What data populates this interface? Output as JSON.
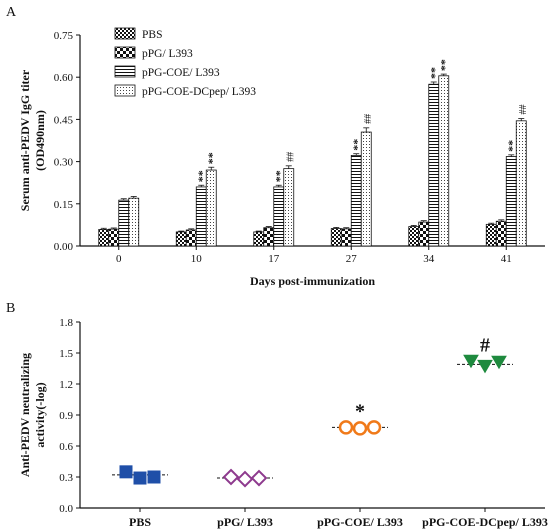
{
  "panels": {
    "a": "A",
    "b": "B"
  },
  "chart_data": [
    {
      "type": "bar",
      "title": "",
      "xlabel": "Days post-immunization",
      "ylabel": [
        "Serum anti-PEDV IgG titer",
        "(OD490nm)"
      ],
      "ylim": [
        0,
        0.75
      ],
      "yticks": [
        "0.00",
        "0.15",
        "0.30",
        "0.45",
        "0.60",
        "0.75"
      ],
      "categories": [
        "0",
        "10",
        "17",
        "27",
        "34",
        "41"
      ],
      "legend_position": "top-left",
      "series": [
        {
          "name": "PBS",
          "pattern": "checker",
          "values": [
            0.059,
            0.05,
            0.05,
            0.062,
            0.069,
            0.077
          ],
          "errors": [
            0.004,
            0.003,
            0.003,
            0.004,
            0.004,
            0.004
          ]
        },
        {
          "name": "pPG/ L393",
          "pattern": "bigchecker",
          "values": [
            0.06,
            0.057,
            0.065,
            0.061,
            0.085,
            0.088
          ],
          "errors": [
            0.004,
            0.004,
            0.004,
            0.004,
            0.005,
            0.005
          ]
        },
        {
          "name": "pPG-COE/ L393",
          "pattern": "hlines",
          "values": [
            0.163,
            0.21,
            0.21,
            0.322,
            0.575,
            0.318
          ],
          "errors": [
            0.005,
            0.006,
            0.006,
            0.006,
            0.008,
            0.006
          ]
        },
        {
          "name": "pPG-COE-DCpep/ L393",
          "pattern": "dots",
          "values": [
            0.17,
            0.27,
            0.275,
            0.405,
            0.605,
            0.445
          ],
          "errors": [
            0.006,
            0.01,
            0.01,
            0.015,
            0.006,
            0.008
          ]
        }
      ],
      "annotations": [
        {
          "category": "10",
          "series": "pPG-COE/ L393",
          "label": "**"
        },
        {
          "category": "10",
          "series": "pPG-COE-DCpep/ L393",
          "label": "**"
        },
        {
          "category": "17",
          "series": "pPG-COE/ L393",
          "label": "**"
        },
        {
          "category": "17",
          "series": "pPG-COE-DCpep/ L393",
          "label": "##"
        },
        {
          "category": "27",
          "series": "pPG-COE/ L393",
          "label": "**"
        },
        {
          "category": "27",
          "series": "pPG-COE-DCpep/ L393",
          "label": "##"
        },
        {
          "category": "34",
          "series": "pPG-COE/ L393",
          "label": "**"
        },
        {
          "category": "34",
          "series": "pPG-COE-DCpep/ L393",
          "label": "**"
        },
        {
          "category": "41",
          "series": "pPG-COE/ L393",
          "label": "**"
        },
        {
          "category": "41",
          "series": "pPG-COE-DCpep/ L393",
          "label": "##"
        }
      ]
    },
    {
      "type": "scatter",
      "title": "",
      "xlabel": "",
      "ylabel": [
        "Anti-PEDV neutralizing",
        "activity(-log)"
      ],
      "ylim": [
        0,
        1.8
      ],
      "yticks": [
        "0.0",
        "0.3",
        "0.6",
        "0.9",
        "1.2",
        "1.5",
        "1.8"
      ],
      "categories": [
        "PBS",
        "pPG/ L393",
        "pPG-COE/ L393",
        "pPG-COE-DCpep/ L393"
      ],
      "groups": [
        {
          "name": "PBS",
          "marker": "square",
          "color": "#1f4fa8",
          "filled": true,
          "points": [
            0.35,
            0.29,
            0.3
          ],
          "mean": 0.32
        },
        {
          "name": "pPG/ L393",
          "marker": "diamond",
          "color": "#8e3a8e",
          "filled": false,
          "points": [
            0.3,
            0.28,
            0.29
          ],
          "mean": 0.29
        },
        {
          "name": "pPG-COE/ L393",
          "marker": "circle",
          "color": "#f07a1a",
          "filled": false,
          "points": [
            0.78,
            0.77,
            0.78
          ],
          "mean": 0.78
        },
        {
          "name": "pPG-COE-DCpep/ L393",
          "marker": "triangle-down",
          "color": "#1e8a3e",
          "filled": true,
          "points": [
            1.42,
            1.37,
            1.41
          ],
          "mean": 1.39
        }
      ],
      "annotations": [
        {
          "group": "pPG-COE/ L393",
          "label": "*"
        },
        {
          "group": "pPG-COE-DCpep/ L393",
          "label": "#"
        }
      ]
    }
  ]
}
